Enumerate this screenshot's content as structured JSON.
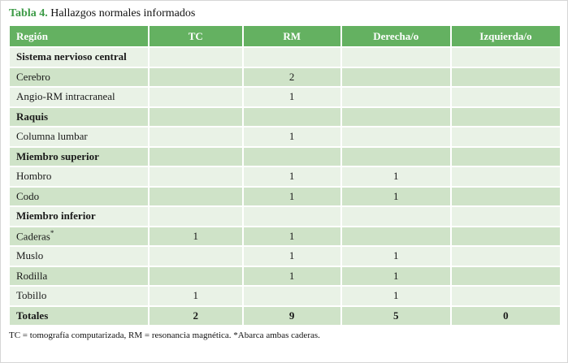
{
  "title": {
    "label": "Tabla 4.",
    "text": " Hallazgos normales informados"
  },
  "colors": {
    "header_green": "#64b161",
    "title_green": "#3d9b47",
    "row_light": "#e9f2e6",
    "row_dark": "#cfe3c8"
  },
  "table": {
    "headers": [
      "Región",
      "TC",
      "RM",
      "Derecha/o",
      "Izquierda/o"
    ],
    "rows": [
      {
        "region": "Sistema nervioso central",
        "bold": true,
        "tc": "",
        "rm": "",
        "der": "",
        "izq": ""
      },
      {
        "region": "Cerebro",
        "bold": false,
        "tc": "",
        "rm": "2",
        "der": "",
        "izq": ""
      },
      {
        "region": "Angio-RM intracraneal",
        "bold": false,
        "tc": "",
        "rm": "1",
        "der": "",
        "izq": ""
      },
      {
        "region": "Raquis",
        "bold": true,
        "tc": "",
        "rm": "",
        "der": "",
        "izq": ""
      },
      {
        "region": "Columna lumbar",
        "bold": false,
        "tc": "",
        "rm": "1",
        "der": "",
        "izq": ""
      },
      {
        "region": "Miembro superior",
        "bold": true,
        "tc": "",
        "rm": "",
        "der": "",
        "izq": ""
      },
      {
        "region": "Hombro",
        "bold": false,
        "tc": "",
        "rm": "1",
        "der": "1",
        "izq": ""
      },
      {
        "region": "Codo",
        "bold": false,
        "tc": "",
        "rm": "1",
        "der": "1",
        "izq": ""
      },
      {
        "region": "Miembro inferior",
        "bold": true,
        "tc": "",
        "rm": "",
        "der": "",
        "izq": ""
      },
      {
        "region": "Caderas",
        "sup": "*",
        "bold": false,
        "tc": "1",
        "rm": "1",
        "der": "",
        "izq": ""
      },
      {
        "region": "Muslo",
        "bold": false,
        "tc": "",
        "rm": "1",
        "der": "1",
        "izq": ""
      },
      {
        "region": "Rodilla",
        "bold": false,
        "tc": "",
        "rm": "1",
        "der": "1",
        "izq": ""
      },
      {
        "region": "Tobillo",
        "bold": false,
        "tc": "1",
        "rm": "",
        "der": "1",
        "izq": ""
      },
      {
        "region": "Totales",
        "bold": true,
        "tc": "2",
        "rm": "9",
        "der": "5",
        "izq": "0"
      }
    ]
  },
  "footnote": "TC = tomografía computarizada, RM = resonancia magnética. *Abarca ambas caderas."
}
